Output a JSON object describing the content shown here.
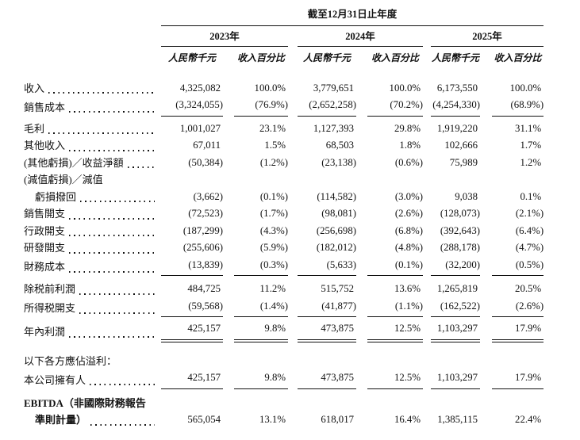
{
  "table": {
    "period_header": "截至12月31日止年度",
    "year_groups": [
      {
        "year": "2023年",
        "unit": "人民幣千元",
        "pct": "收入百分比"
      },
      {
        "year": "2024年",
        "unit": "人民幣千元",
        "pct": "收入百分比"
      },
      {
        "year": "2025年",
        "unit": "人民幣千元",
        "pct": "收入百分比"
      }
    ],
    "rows": [
      {
        "label": "收入",
        "leader": true,
        "values": [
          "4,325,082",
          "100.0%",
          "3,779,651",
          "100.0%",
          "6,173,550",
          "100.0%"
        ]
      },
      {
        "label": "銷售成本",
        "leader": true,
        "rule": "single",
        "values": [
          "(3,324,055)",
          "(76.9%)",
          "(2,652,258)",
          "(70.2%)",
          "(4,254,330)",
          "(68.9%)"
        ]
      },
      {
        "spacer": 5
      },
      {
        "label": "毛利",
        "leader": true,
        "values": [
          "1,001,027",
          "23.1%",
          "1,127,393",
          "29.8%",
          "1,919,220",
          "31.1%"
        ]
      },
      {
        "label": "其他收入",
        "leader": true,
        "values": [
          "67,011",
          "1.5%",
          "68,503",
          "1.8%",
          "102,666",
          "1.7%"
        ]
      },
      {
        "label": "(其他虧損)／收益淨額",
        "leader": true,
        "values": [
          "(50,384)",
          "(1.2%)",
          "(23,138)",
          "(0.6%)",
          "75,989",
          "1.2%"
        ]
      },
      {
        "label": "(減值虧損)／減值",
        "leader": false,
        "values": null
      },
      {
        "label": "虧損撥回",
        "leader": true,
        "indent": true,
        "values": [
          "(3,662)",
          "(0.1%)",
          "(114,582)",
          "(3.0%)",
          "9,038",
          "0.1%"
        ]
      },
      {
        "label": "銷售開支",
        "leader": true,
        "values": [
          "(72,523)",
          "(1.7%)",
          "(98,081)",
          "(2.6%)",
          "(128,073)",
          "(2.1%)"
        ]
      },
      {
        "label": "行政開支",
        "leader": true,
        "values": [
          "(187,299)",
          "(4.3%)",
          "(256,698)",
          "(6.8%)",
          "(392,643)",
          "(6.4%)"
        ]
      },
      {
        "label": "研發開支",
        "leader": true,
        "values": [
          "(255,606)",
          "(5.9%)",
          "(182,012)",
          "(4.8%)",
          "(288,178)",
          "(4.7%)"
        ]
      },
      {
        "label": "財務成本",
        "leader": true,
        "rule": "single",
        "values": [
          "(13,839)",
          "(0.3%)",
          "(5,633)",
          "(0.1%)",
          "(32,200)",
          "(0.5%)"
        ]
      },
      {
        "spacer": 6
      },
      {
        "label": "除税前利潤",
        "leader": true,
        "values": [
          "484,725",
          "11.2%",
          "515,752",
          "13.6%",
          "1,265,819",
          "20.5%"
        ]
      },
      {
        "label": "所得税開支",
        "leader": true,
        "rule": "single",
        "values": [
          "(59,568)",
          "(1.4%)",
          "(41,877)",
          "(1.1%)",
          "(162,522)",
          "(2.6%)"
        ]
      },
      {
        "spacer": 4
      },
      {
        "label": "年內利潤",
        "leader": true,
        "rule": "double",
        "values": [
          "425,157",
          "9.8%",
          "473,875",
          "12.5%",
          "1,103,297",
          "17.9%"
        ]
      },
      {
        "spacer": 13
      },
      {
        "label": "以下各方應佔溢利：",
        "leader": false,
        "values": null
      },
      {
        "label": "本公司擁有人",
        "leader": true,
        "rule": "single",
        "values": [
          "425,157",
          "9.8%",
          "473,875",
          "12.5%",
          "1,103,297",
          "17.9%"
        ]
      },
      {
        "spacer": 7
      },
      {
        "label": "EBITDA（非國際財務報告",
        "leader": false,
        "bold": true,
        "values": null
      },
      {
        "label": "準則計量）",
        "leader": true,
        "indent": true,
        "bold": true,
        "values": [
          "565,054",
          "13.1%",
          "618,017",
          "16.4%",
          "1,385,115",
          "22.4%"
        ]
      }
    ]
  }
}
